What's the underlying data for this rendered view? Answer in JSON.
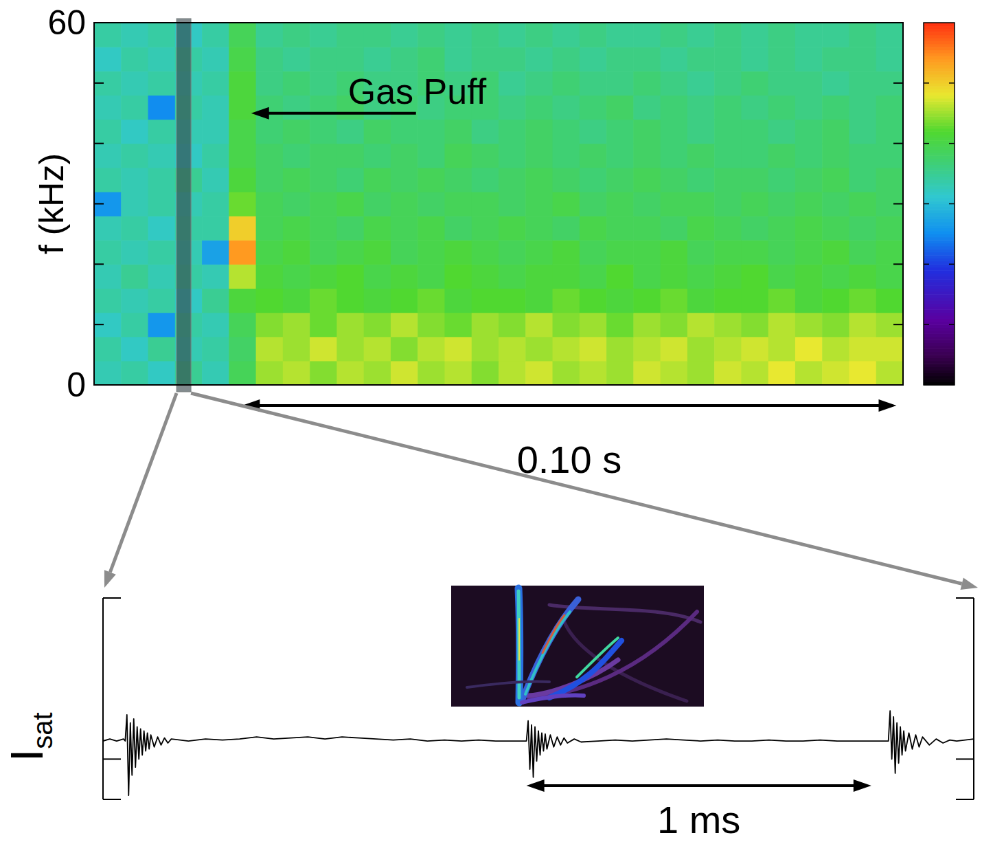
{
  "chart_data": [
    {
      "type": "heatmap",
      "xlim": [
        0,
        0.1236
      ],
      "ylim": [
        0,
        60
      ],
      "yticks": [
        0,
        60
      ],
      "yminor": [
        10,
        20,
        30,
        40,
        50
      ],
      "tick_labels": "y",
      "ylabel": "f (kHz)",
      "colorbar_range": [
        0,
        6
      ],
      "colorbar_ticks": [
        1,
        2,
        3,
        4,
        5
      ],
      "zoom": [
        0.0126,
        0.0148
      ],
      "annotations": [
        {
          "text": "Gas Puff",
          "x": 0.024,
          "y": 45
        },
        {
          "text": "0.10 s",
          "x": [
            0.0226,
            0.1226
          ]
        }
      ],
      "z": [
        [
          3.3,
          3.4,
          3.2,
          3.5,
          3.3,
          3.9,
          4.5,
          4.6,
          4.4,
          4.6,
          4.5,
          4.7,
          4.5,
          4.6,
          4.4,
          4.6,
          4.7,
          4.5,
          4.6,
          4.5,
          4.7,
          4.6,
          4.5,
          4.7,
          4.6,
          4.8,
          4.6,
          4.7,
          4.8,
          4.6
        ],
        [
          3.4,
          3.2,
          3.5,
          3.3,
          3.4,
          3.8,
          4.6,
          4.5,
          4.7,
          4.5,
          4.6,
          4.4,
          4.6,
          4.7,
          4.5,
          4.6,
          4.5,
          4.6,
          4.7,
          4.5,
          4.6,
          4.7,
          4.5,
          4.6,
          4.7,
          4.6,
          4.8,
          4.6,
          4.7,
          4.7
        ],
        [
          3.2,
          3.4,
          2.6,
          3.4,
          3.3,
          3.9,
          4.4,
          4.5,
          4.3,
          4.5,
          4.4,
          4.6,
          4.4,
          4.3,
          4.5,
          4.4,
          4.6,
          4.4,
          4.5,
          4.3,
          4.5,
          4.4,
          4.6,
          4.5,
          4.4,
          4.6,
          4.5,
          4.4,
          4.6,
          4.5
        ],
        [
          3.4,
          3.3,
          3.4,
          3.2,
          3.5,
          4.1,
          4.2,
          4.1,
          4.3,
          4.2,
          4.1,
          4.2,
          4.3,
          4.1,
          4.2,
          4.2,
          4.1,
          4.3,
          4.2,
          4.1,
          4.2,
          4.3,
          4.1,
          4.2,
          4.2,
          4.3,
          4.1,
          4.2,
          4.3,
          4.2
        ],
        [
          3.3,
          3.5,
          3.3,
          3.4,
          3.3,
          4.6,
          4.1,
          4.0,
          4.1,
          4.2,
          4.0,
          4.1,
          4.0,
          4.2,
          4.1,
          4.0,
          4.1,
          4.1,
          4.0,
          4.2,
          4.0,
          4.1,
          4.0,
          4.1,
          4.2,
          4.0,
          4.1,
          4.0,
          4.1,
          4.0
        ],
        [
          3.4,
          3.3,
          3.4,
          3.3,
          2.7,
          5.4,
          4.0,
          4.1,
          3.9,
          4.0,
          4.1,
          3.9,
          4.0,
          4.1,
          4.0,
          3.9,
          4.0,
          4.1,
          3.9,
          4.0,
          4.0,
          4.1,
          3.9,
          4.0,
          4.0,
          3.9,
          4.0,
          4.1,
          3.9,
          4.0
        ],
        [
          3.3,
          3.4,
          3.2,
          3.4,
          3.4,
          5.0,
          3.9,
          4.0,
          3.9,
          3.8,
          4.0,
          3.9,
          4.0,
          3.8,
          3.9,
          4.0,
          3.9,
          3.8,
          4.0,
          3.9,
          3.9,
          3.8,
          4.0,
          3.9,
          3.8,
          3.9,
          4.0,
          3.9,
          3.8,
          3.9
        ],
        [
          2.6,
          3.3,
          3.4,
          3.3,
          3.4,
          4.3,
          3.9,
          3.8,
          3.9,
          4.0,
          3.8,
          3.9,
          3.8,
          3.9,
          3.9,
          3.8,
          3.9,
          4.0,
          3.8,
          3.9,
          3.8,
          3.9,
          3.9,
          3.8,
          3.9,
          3.8,
          3.9,
          3.8,
          3.9,
          3.8
        ],
        [
          3.4,
          3.3,
          3.4,
          3.5,
          3.3,
          4.1,
          3.8,
          3.9,
          3.8,
          3.7,
          3.9,
          3.8,
          3.9,
          3.8,
          3.7,
          3.8,
          3.9,
          3.8,
          3.7,
          3.8,
          3.9,
          3.8,
          3.7,
          3.8,
          3.8,
          3.7,
          3.8,
          3.9,
          3.7,
          3.8
        ],
        [
          3.3,
          3.4,
          3.3,
          3.2,
          3.4,
          4.0,
          3.8,
          3.7,
          3.8,
          3.8,
          3.7,
          3.8,
          3.7,
          3.9,
          3.8,
          3.7,
          3.8,
          3.7,
          3.8,
          3.7,
          3.8,
          3.7,
          3.8,
          3.7,
          3.7,
          3.8,
          3.7,
          3.8,
          3.7,
          3.7
        ],
        [
          3.4,
          3.2,
          3.4,
          3.3,
          3.3,
          4.0,
          3.7,
          3.8,
          3.7,
          3.6,
          3.8,
          3.7,
          3.7,
          3.8,
          3.6,
          3.7,
          3.8,
          3.7,
          3.6,
          3.7,
          3.8,
          3.7,
          3.6,
          3.7,
          3.7,
          3.6,
          3.7,
          3.8,
          3.6,
          3.7
        ],
        [
          3.3,
          3.4,
          2.5,
          3.4,
          3.3,
          4.1,
          3.7,
          3.6,
          3.7,
          3.8,
          3.6,
          3.7,
          3.6,
          3.7,
          3.7,
          3.6,
          3.7,
          3.6,
          3.7,
          3.8,
          3.6,
          3.7,
          3.6,
          3.7,
          3.6,
          3.7,
          3.6,
          3.7,
          3.6,
          3.7
        ],
        [
          3.4,
          3.3,
          3.4,
          3.3,
          3.4,
          4.1,
          3.6,
          3.7,
          3.6,
          3.7,
          3.6,
          3.6,
          3.7,
          3.6,
          3.7,
          3.5,
          3.6,
          3.7,
          3.6,
          3.6,
          3.7,
          3.6,
          3.5,
          3.6,
          3.7,
          3.6,
          3.6,
          3.5,
          3.6,
          3.6
        ],
        [
          3.2,
          3.4,
          3.3,
          3.4,
          3.3,
          4.0,
          3.6,
          3.5,
          3.6,
          3.6,
          3.5,
          3.6,
          3.7,
          3.5,
          3.6,
          3.6,
          3.5,
          3.6,
          3.5,
          3.6,
          3.6,
          3.5,
          3.6,
          3.6,
          3.5,
          3.6,
          3.5,
          3.6,
          3.6,
          3.5
        ],
        [
          3.4,
          3.3,
          3.4,
          3.2,
          3.4,
          3.9,
          3.5,
          3.6,
          3.5,
          3.6,
          3.6,
          3.5,
          3.6,
          3.5,
          3.6,
          3.5,
          3.6,
          3.5,
          3.6,
          3.5,
          3.5,
          3.6,
          3.5,
          3.6,
          3.5,
          3.6,
          3.5,
          3.5,
          3.6,
          3.5
        ]
      ]
    },
    {
      "type": "line",
      "color": "#000000",
      "xlim": [
        0,
        2.55
      ],
      "ylim": [
        0,
        1
      ],
      "yticks": [
        0,
        0.2,
        1
      ],
      "tick_labels": false,
      "ylabel": {
        "base": "I",
        "sub": "sat"
      },
      "annotations": [
        {
          "text": "1 ms",
          "x": [
            1.24,
            2.25
          ]
        }
      ],
      "x": [
        0,
        0.02,
        0.04,
        0.06,
        0.065,
        0.07,
        0.075,
        0.08,
        0.085,
        0.09,
        0.095,
        0.1,
        0.105,
        0.11,
        0.115,
        0.12,
        0.125,
        0.13,
        0.135,
        0.14,
        0.15,
        0.16,
        0.17,
        0.18,
        0.19,
        0.2,
        0.25,
        0.3,
        0.35,
        0.4,
        0.45,
        0.5,
        0.55,
        0.6,
        0.65,
        0.7,
        0.75,
        0.8,
        0.85,
        0.9,
        0.95,
        1.0,
        1.05,
        1.1,
        1.15,
        1.2,
        1.24,
        1.245,
        1.25,
        1.255,
        1.26,
        1.265,
        1.27,
        1.275,
        1.28,
        1.285,
        1.29,
        1.295,
        1.3,
        1.31,
        1.32,
        1.33,
        1.34,
        1.35,
        1.36,
        1.38,
        1.4,
        1.45,
        1.5,
        1.55,
        1.6,
        1.65,
        1.7,
        1.75,
        1.8,
        1.85,
        1.9,
        1.95,
        2.0,
        2.05,
        2.1,
        2.15,
        2.2,
        2.25,
        2.3,
        2.305,
        2.31,
        2.315,
        2.32,
        2.325,
        2.33,
        2.335,
        2.34,
        2.345,
        2.35,
        2.36,
        2.37,
        2.38,
        2.39,
        2.4,
        2.42,
        2.44,
        2.46,
        2.48,
        2.5,
        2.55
      ],
      "values": [
        0.29,
        0.3,
        0.29,
        0.3,
        0.29,
        0.42,
        0.02,
        0.38,
        0.12,
        0.4,
        0.16,
        0.36,
        0.2,
        0.35,
        0.22,
        0.34,
        0.24,
        0.33,
        0.25,
        0.32,
        0.26,
        0.31,
        0.27,
        0.305,
        0.28,
        0.3,
        0.29,
        0.3,
        0.295,
        0.3,
        0.31,
        0.3,
        0.305,
        0.31,
        0.3,
        0.31,
        0.305,
        0.3,
        0.295,
        0.3,
        0.29,
        0.295,
        0.29,
        0.295,
        0.29,
        0.29,
        0.29,
        0.39,
        0.15,
        0.37,
        0.11,
        0.36,
        0.19,
        0.34,
        0.22,
        0.33,
        0.24,
        0.325,
        0.25,
        0.32,
        0.26,
        0.31,
        0.27,
        0.305,
        0.28,
        0.3,
        0.285,
        0.29,
        0.295,
        0.29,
        0.295,
        0.3,
        0.295,
        0.29,
        0.295,
        0.29,
        0.29,
        0.295,
        0.29,
        0.29,
        0.295,
        0.29,
        0.29,
        0.29,
        0.29,
        0.44,
        0.2,
        0.41,
        0.13,
        0.38,
        0.18,
        0.36,
        0.22,
        0.34,
        0.24,
        0.33,
        0.25,
        0.32,
        0.26,
        0.31,
        0.27,
        0.3,
        0.28,
        0.295,
        0.29,
        0.3
      ]
    }
  ]
}
